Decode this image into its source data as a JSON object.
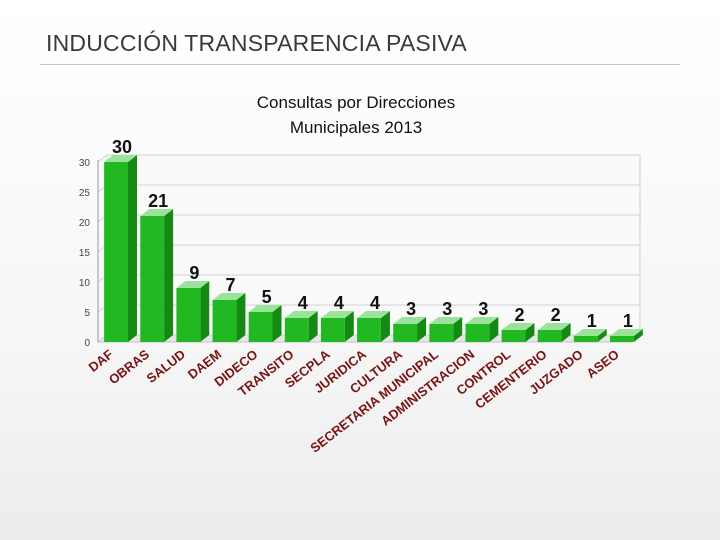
{
  "slide": {
    "title": "INDUCCIÓN TRANSPARENCIA PASIVA"
  },
  "chart_data": {
    "type": "bar",
    "title": "Consultas por Direcciones Municipales  2013",
    "title_lines": [
      "Consultas por Direcciones",
      "Municipales  2013"
    ],
    "xlabel": "",
    "ylabel": "",
    "ylim": [
      0,
      30
    ],
    "yticks": [
      0,
      5,
      10,
      15,
      20,
      25,
      30
    ],
    "grid": true,
    "categories": [
      "DAF",
      "OBRAS",
      "SALUD",
      "DAEM",
      "DIDECO",
      "TRANSITO",
      "SECPLA",
      "JURIDICA",
      "CULTURA",
      "SECRETARIA MUNICIPAL",
      "ADMINISTRACION",
      "CONTROL",
      "CEMENTERIO",
      "JUZGADO",
      "ASEO"
    ],
    "values": [
      30,
      21,
      9,
      7,
      5,
      4,
      4,
      4,
      3,
      3,
      3,
      2,
      2,
      1,
      1
    ],
    "colors": {
      "bar_front": "#22b822",
      "bar_top": "#9be39b",
      "bar_side": "#148a14",
      "label": "#7a1414"
    }
  }
}
